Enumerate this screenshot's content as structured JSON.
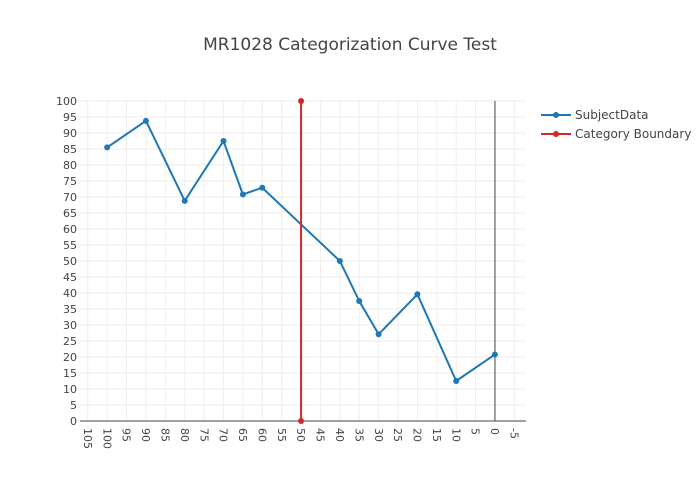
{
  "chart_data": {
    "type": "line",
    "title": "MR1028 Categorization Curve Test",
    "xlabel": "",
    "ylabel": "",
    "x_reversed": true,
    "xlim": [
      107,
      -8
    ],
    "ylim": [
      0,
      100
    ],
    "x_ticks": [
      105,
      100,
      95,
      90,
      85,
      80,
      75,
      70,
      65,
      60,
      55,
      50,
      45,
      40,
      35,
      30,
      25,
      20,
      15,
      10,
      5,
      0,
      -5
    ],
    "x_tick_labels": [
      "105",
      "100",
      "95",
      "90",
      "85",
      "80",
      "75",
      "70",
      "65",
      "60",
      "55",
      "50",
      "45",
      "40",
      "35",
      "30",
      "25",
      "20",
      "15",
      "10",
      "5",
      "0",
      "-5"
    ],
    "y_ticks": [
      0,
      5,
      10,
      15,
      20,
      25,
      30,
      35,
      40,
      45,
      50,
      55,
      60,
      65,
      70,
      75,
      80,
      85,
      90,
      95,
      100
    ],
    "y_tick_labels": [
      "0",
      "5",
      "10",
      "15",
      "20",
      "25",
      "30",
      "35",
      "40",
      "45",
      "50",
      "55",
      "60",
      "65",
      "70",
      "75",
      "80",
      "85",
      "90",
      "95",
      "100"
    ],
    "grid": true,
    "legend_position": "top-right",
    "series": [
      {
        "name": "SubjectData",
        "color": "#1f77b4",
        "x": [
          100,
          90,
          80,
          70,
          65,
          60,
          40,
          35,
          30,
          20,
          10,
          0
        ],
        "y": [
          85.5,
          93.8,
          68.8,
          87.5,
          70.8,
          72.9,
          50.0,
          37.5,
          27.1,
          39.6,
          12.5,
          20.8
        ]
      },
      {
        "name": "Category Boundary",
        "color": "#d62728",
        "x": [
          50,
          50
        ],
        "y": [
          0,
          100
        ]
      }
    ],
    "zero_line_x": 0
  }
}
